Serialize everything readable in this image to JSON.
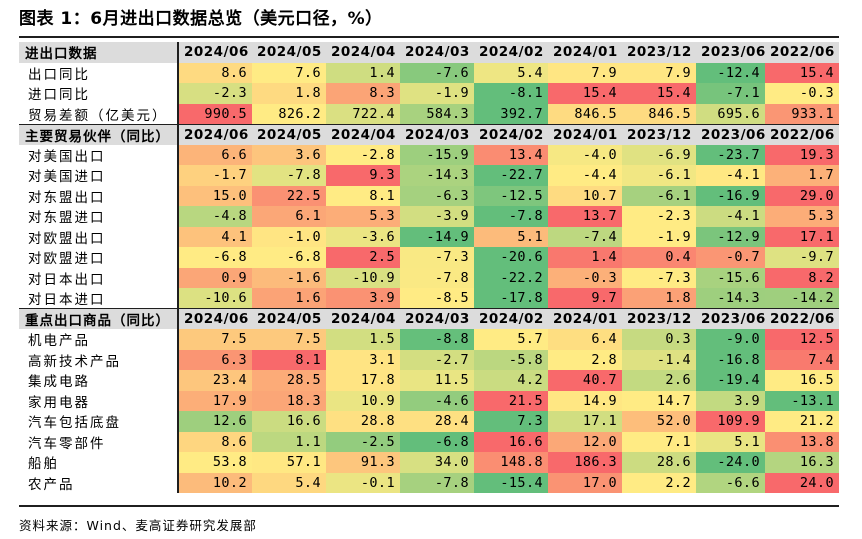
{
  "title": "图表 1：6月进出口数据总览（美元口径，%）",
  "source": "资料来源：Wind、麦高证券研究发展部",
  "colors": {
    "header_bg": "#dcdcdc",
    "scale_low": "#63be7b",
    "scale_mid": "#ffeb84",
    "scale_high": "#f8696b"
  },
  "sections": [
    {
      "header": "进出口数据",
      "columns": [
        "2024/06",
        "2024/05",
        "2024/04",
        "2024/03",
        "2024/02",
        "2024/01",
        "2023/12",
        "2023/06",
        "2022/06"
      ],
      "rows": [
        {
          "label": "出口同比",
          "values": [
            "8.6",
            "7.6",
            "1.4",
            "-7.6",
            "5.4",
            "7.9",
            "7.9",
            "-12.4",
            "15.4"
          ]
        },
        {
          "label": "进口同比",
          "values": [
            "-2.3",
            "1.8",
            "8.3",
            "-1.9",
            "-8.1",
            "15.4",
            "15.4",
            "-7.1",
            "-0.3"
          ]
        },
        {
          "label": "贸易差额（亿美元）",
          "values": [
            "990.5",
            "826.2",
            "722.4",
            "584.3",
            "392.7",
            "846.5",
            "846.5",
            "695.6",
            "933.1"
          ]
        }
      ]
    },
    {
      "header": "主要贸易伙伴（同比）",
      "columns": [
        "2024/06",
        "2024/05",
        "2024/04",
        "2024/03",
        "2024/02",
        "2024/01",
        "2023/12",
        "2023/06",
        "2022/06"
      ],
      "rows": [
        {
          "label": "对美国出口",
          "values": [
            "6.6",
            "3.6",
            "-2.8",
            "-15.9",
            "13.4",
            "-4.0",
            "-6.9",
            "-23.7",
            "19.3"
          ]
        },
        {
          "label": "对美国进口",
          "values": [
            "-1.7",
            "-7.8",
            "9.3",
            "-14.3",
            "-22.7",
            "-4.4",
            "-6.1",
            "-4.1",
            "1.7"
          ]
        },
        {
          "label": "对东盟出口",
          "values": [
            "15.0",
            "22.5",
            "8.1",
            "-6.3",
            "-12.5",
            "10.7",
            "-6.1",
            "-16.9",
            "29.0"
          ]
        },
        {
          "label": "对东盟进口",
          "values": [
            "-4.8",
            "6.1",
            "5.3",
            "-3.9",
            "-7.8",
            "13.7",
            "-2.3",
            "-4.1",
            "5.3"
          ]
        },
        {
          "label": "对欧盟出口",
          "values": [
            "4.1",
            "-1.0",
            "-3.6",
            "-14.9",
            "5.1",
            "-7.4",
            "-1.9",
            "-12.9",
            "17.1"
          ]
        },
        {
          "label": "对欧盟进口",
          "values": [
            "-6.8",
            "-6.8",
            "2.5",
            "-7.3",
            "-20.6",
            "1.4",
            "0.4",
            "-0.7",
            "-9.7"
          ]
        },
        {
          "label": "对日本出口",
          "values": [
            "0.9",
            "-1.6",
            "-10.9",
            "-7.8",
            "-22.2",
            "-0.3",
            "-7.3",
            "-15.6",
            "8.2"
          ]
        },
        {
          "label": "对日本进口",
          "values": [
            "-10.6",
            "1.6",
            "3.9",
            "-8.5",
            "-17.8",
            "9.7",
            "1.8",
            "-14.3",
            "-14.2"
          ]
        }
      ]
    },
    {
      "header": "重点出口商品（同比）",
      "columns": [
        "2024/06",
        "2024/05",
        "2024/04",
        "2024/03",
        "2024/02",
        "2024/01",
        "2023/12",
        "2023/06",
        "2022/06"
      ],
      "rows": [
        {
          "label": "机电产品",
          "values": [
            "7.5",
            "7.5",
            "1.5",
            "-8.8",
            "5.7",
            "6.4",
            "0.3",
            "-9.0",
            "12.5"
          ]
        },
        {
          "label": "高新技术产品",
          "values": [
            "6.3",
            "8.1",
            "3.1",
            "-2.7",
            "-5.8",
            "2.8",
            "-1.4",
            "-16.8",
            "7.4"
          ]
        },
        {
          "label": "集成电路",
          "values": [
            "23.4",
            "28.5",
            "17.8",
            "11.5",
            "4.2",
            "40.7",
            "2.6",
            "-19.4",
            "16.5"
          ]
        },
        {
          "label": "家用电器",
          "values": [
            "17.9",
            "18.3",
            "10.9",
            "-4.6",
            "21.5",
            "14.9",
            "14.7",
            "3.9",
            "-13.1"
          ]
        },
        {
          "label": "汽车包括底盘",
          "values": [
            "12.6",
            "16.6",
            "28.8",
            "28.4",
            "7.3",
            "17.1",
            "52.0",
            "109.9",
            "21.2"
          ]
        },
        {
          "label": "汽车零部件",
          "values": [
            "8.6",
            "1.1",
            "-2.5",
            "-6.8",
            "16.6",
            "12.0",
            "7.1",
            "5.1",
            "13.8"
          ]
        },
        {
          "label": "船舶",
          "values": [
            "53.8",
            "57.1",
            "91.3",
            "34.0",
            "148.8",
            "186.3",
            "28.6",
            "-24.0",
            "16.3"
          ]
        },
        {
          "label": "农产品",
          "values": [
            "10.2",
            "5.4",
            "-0.1",
            "-7.8",
            "-15.4",
            "17.0",
            "2.2",
            "-6.6",
            "24.0"
          ]
        }
      ]
    }
  ]
}
